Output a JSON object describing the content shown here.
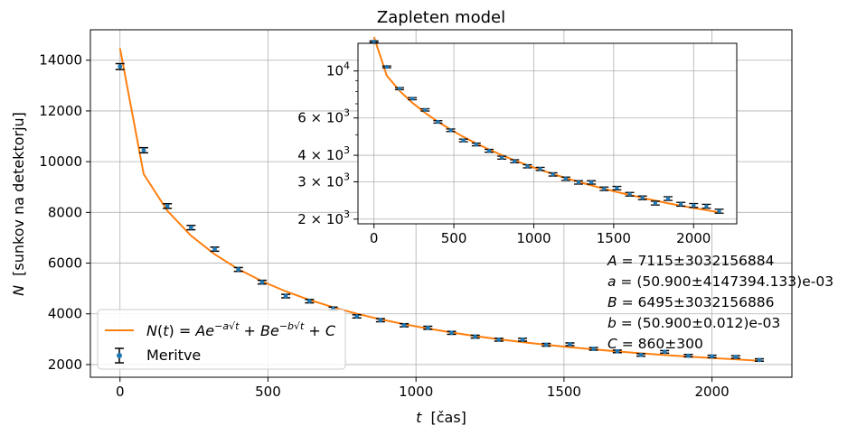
{
  "chart_data": [
    {
      "type": "scatter",
      "title": "Zapleten model",
      "xlabel_var": "t",
      "xlabel_unit": "[čas]",
      "ylabel_var": "N",
      "ylabel_unit": "[sunkov na detektorju]",
      "xlim": [
        -100,
        2270
      ],
      "ylim": [
        1500,
        15200
      ],
      "x_ticks": [
        0,
        500,
        1000,
        1500,
        2000
      ],
      "y_ticks": [
        2000,
        4000,
        6000,
        8000,
        10000,
        12000,
        14000
      ],
      "grid": true,
      "legend_position": "lower-left",
      "legend": {
        "fit_label": "N(t) = Ae^{-a√t} + Be^{-b√t} + C",
        "data_label": "Meritve"
      },
      "colors": {
        "fit": "#ff7f0e",
        "points": "#1f77b4",
        "errorbars": "#000000",
        "grid": "#b0b0b0"
      },
      "series": [
        {
          "name": "Meritve",
          "kind": "errorbar",
          "x": [
            0,
            80,
            160,
            240,
            320,
            400,
            480,
            560,
            640,
            720,
            800,
            880,
            960,
            1040,
            1120,
            1200,
            1280,
            1360,
            1440,
            1520,
            1600,
            1680,
            1760,
            1840,
            1920,
            2000,
            2080,
            2160
          ],
          "y": [
            13750,
            10450,
            8250,
            7400,
            6550,
            5750,
            5250,
            4700,
            4500,
            4200,
            3900,
            3750,
            3550,
            3450,
            3250,
            3100,
            2980,
            2980,
            2780,
            2800,
            2620,
            2520,
            2380,
            2500,
            2350,
            2320,
            2300,
            2180
          ],
          "yerr": [
            115,
            100,
            90,
            85,
            80,
            75,
            72,
            68,
            67,
            65,
            62,
            61,
            60,
            59,
            57,
            56,
            55,
            55,
            53,
            53,
            51,
            50,
            49,
            50,
            48,
            48,
            48,
            47
          ]
        },
        {
          "name": "N(t) = Ae^{-a√t} + Be^{-b√t} + C",
          "kind": "line",
          "x": [
            0,
            80,
            160,
            240,
            320,
            400,
            480,
            560,
            640,
            720,
            800,
            880,
            960,
            1040,
            1120,
            1200,
            1280,
            1360,
            1440,
            1520,
            1600,
            1680,
            1760,
            1840,
            1920,
            2000,
            2080,
            2160
          ],
          "y": [
            14470,
            9510,
            8065,
            7080,
            6345,
            5760,
            5285,
            4885,
            4550,
            4260,
            4005,
            3785,
            3590,
            3420,
            3265,
            3125,
            3000,
            2885,
            2780,
            2685,
            2600,
            2520,
            2445,
            2375,
            2315,
            2255,
            2205,
            2150
          ]
        }
      ]
    },
    {
      "type": "scatter",
      "panel": "inset",
      "yscale": "log",
      "xlim": [
        -100,
        2270
      ],
      "ylim": [
        1900,
        13500
      ],
      "x_ticks": [
        0,
        500,
        1000,
        1500,
        2000
      ],
      "y_ticks": [
        {
          "value": 10000,
          "mantissa": "",
          "exponent": "4"
        },
        {
          "value": 6000,
          "mantissa": "6",
          "exponent": "3"
        },
        {
          "value": 4000,
          "mantissa": "4",
          "exponent": "3"
        },
        {
          "value": 3000,
          "mantissa": "3",
          "exponent": "3"
        },
        {
          "value": 2000,
          "mantissa": "2",
          "exponent": "3"
        }
      ],
      "grid": true,
      "note": "same Meritve and fit series as the main panel, drawn on a logarithmic y axis"
    }
  ],
  "annotations": [
    {
      "var": "A",
      "text": " = 7115±3032156884"
    },
    {
      "var": "a",
      "text": " = (50.900±4147394.133)e-03"
    },
    {
      "var": "B",
      "text": " = 6495±3032156886"
    },
    {
      "var": "b",
      "text": " = (50.900±0.012)e-03"
    },
    {
      "var": "C",
      "text": " = 860±300"
    }
  ]
}
